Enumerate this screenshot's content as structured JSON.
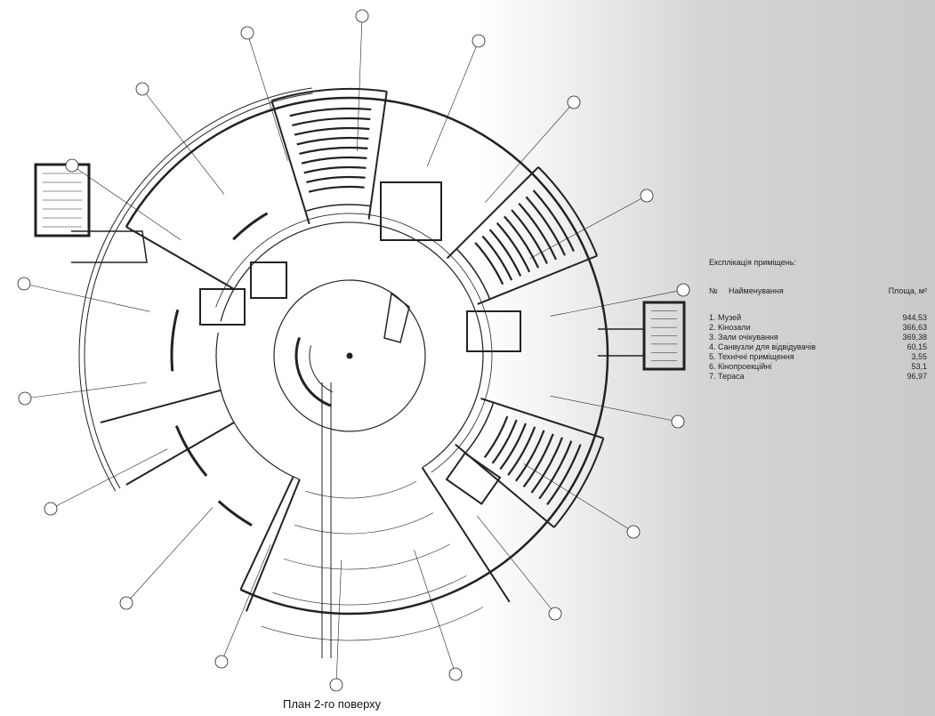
{
  "legend": {
    "title": "Експлікація приміщень:",
    "col_no": "№",
    "col_name": "Найменування",
    "col_area": "Площа, м²",
    "rows": [
      {
        "name": "1. Музей",
        "area": "944,53"
      },
      {
        "name": "2. Кінозали",
        "area": "366,63"
      },
      {
        "name": "3. Зали очікування",
        "area": "369,38"
      },
      {
        "name": "4. Санвузли для відвідувачів",
        "area": "60,15"
      },
      {
        "name": "5. Технічні приміщення",
        "area": "3,55"
      },
      {
        "name": "6. Кінопроекційні",
        "area": "53,1"
      },
      {
        "name": "7. Тераса",
        "area": "96,97"
      }
    ]
  },
  "caption": "План 2-го поверху"
}
